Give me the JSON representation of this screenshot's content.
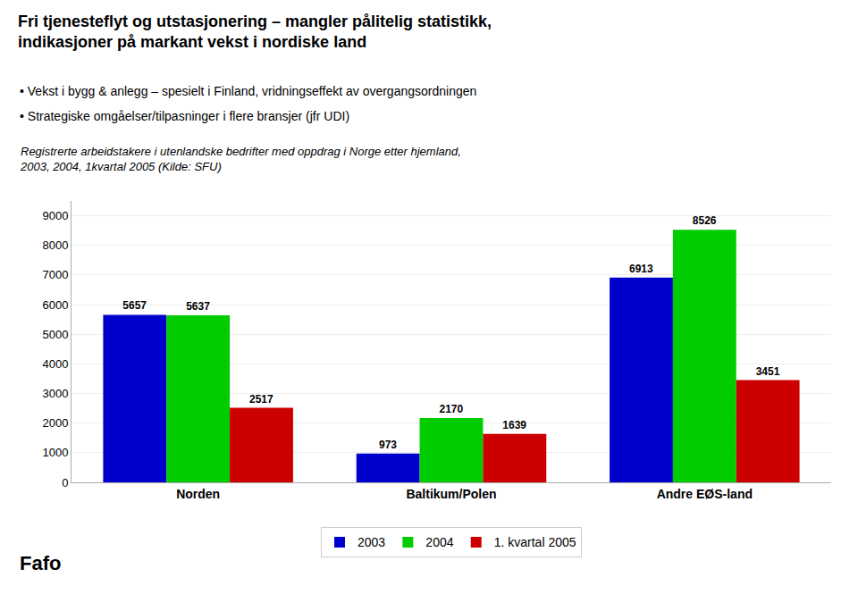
{
  "chart_data": {
    "type": "bar",
    "title": "Fri tjenesteflyt og utstasjonering – mangler pålitelig statistikk,\nindikasjoner på markant vekst i nordiske land",
    "subtitle": "Registrerte arbeidstakere i utenlandske bedrifter med oppdrag i Norge etter hjemland,\n2003, 2004, 1kvartal 2005 (Kilde: SFU)",
    "annotations": [
      "• Vekst i bygg & anlegg – spesielt i Finland, vridningseffekt av overgangsordningen",
      "• Strategiske omgåelser/tilpasninger i flere bransjer (jfr UDI)",
      "Fafo"
    ],
    "categories": [
      "Norden",
      "Baltikum/Polen",
      "Andre EØS-land"
    ],
    "series": [
      {
        "name": "2003",
        "color": "#0000CC",
        "values": [
          5657,
          973,
          6913
        ]
      },
      {
        "name": "2004",
        "color": "#00CC00",
        "values": [
          5637,
          2170,
          8526
        ]
      },
      {
        "name": "1. kvartal 2005",
        "color": "#CC0000",
        "values": [
          2517,
          1639,
          3451
        ]
      }
    ],
    "ylim": [
      0,
      9500
    ],
    "yticks": [
      0,
      1000,
      2000,
      3000,
      4000,
      5000,
      6000,
      7000,
      8000,
      9000
    ],
    "grid": true,
    "legend": "bottom",
    "data_labels": true
  }
}
